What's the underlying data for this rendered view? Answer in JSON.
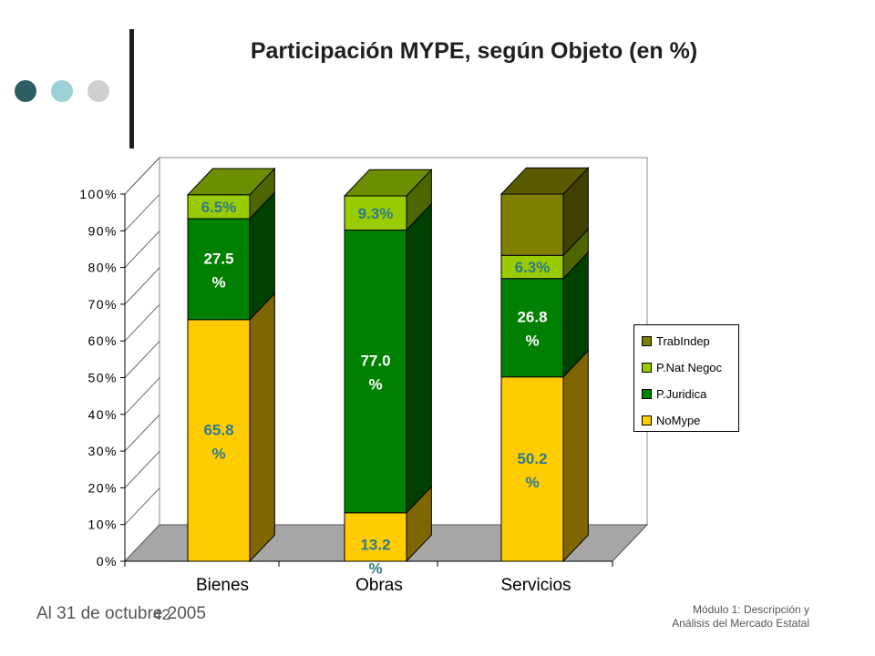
{
  "title": "Participación MYPE, según Objeto (en %)",
  "decor": {
    "dot_colors": [
      "#2e5d66",
      "#9ccfd6",
      "#cfcfcf"
    ]
  },
  "footer": {
    "left": "Al 31 de octubre 2005",
    "page": "42",
    "right_line1": "Módulo 1: Descripción y",
    "right_line2": "Análisis del Mercado Estatal"
  },
  "chart_data": {
    "type": "bar",
    "stacked": true,
    "three_d": true,
    "categories": [
      "Bienes",
      "Obras",
      "Servicios"
    ],
    "ylim": [
      0,
      100
    ],
    "yticks": [
      "0%",
      "10%",
      "20%",
      "30%",
      "40%",
      "50%",
      "60%",
      "70%",
      "80%",
      "90%",
      "100%"
    ],
    "series": [
      {
        "name": "NoMype",
        "color": "#ffcc00",
        "values": [
          65.8,
          13.2,
          50.2
        ],
        "labels": [
          "65.8 %",
          "13.2 %",
          "50.2 %"
        ]
      },
      {
        "name": "P.Juridica",
        "color": "#008000",
        "values": [
          27.5,
          77.0,
          26.8
        ],
        "labels": [
          "27.5 %",
          "77.0 %",
          "26.8 %"
        ]
      },
      {
        "name": "P.Nat Negoc",
        "color": "#99cc00",
        "values": [
          6.5,
          9.3,
          6.3
        ],
        "labels": [
          "6.5%",
          "9.3%",
          "6.3%"
        ]
      },
      {
        "name": "TrabIndep",
        "color": "#808000",
        "values": [
          0,
          0,
          16.7
        ],
        "labels": [
          "",
          "",
          ""
        ]
      }
    ],
    "legend_position": "right",
    "grid": false
  }
}
